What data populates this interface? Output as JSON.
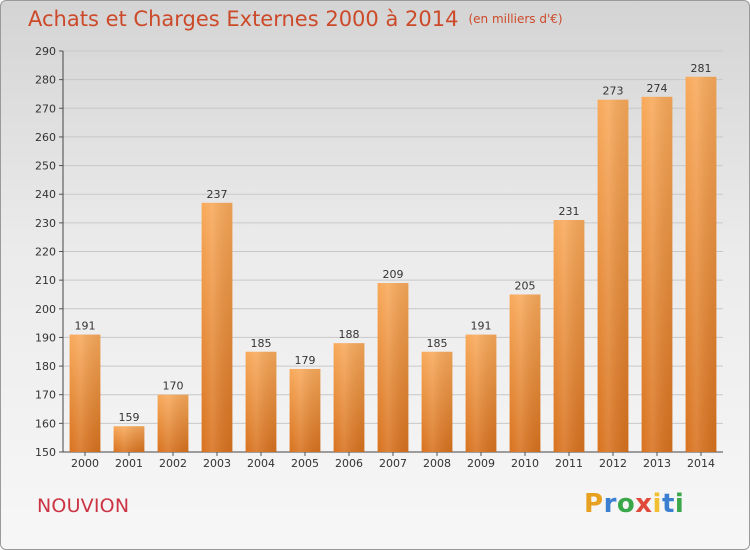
{
  "title": "Achats et Charges Externes 2000 à 2014",
  "subtitle": "(en milliers d'€)",
  "commune": "NOUVION",
  "logo": {
    "letters": [
      "P",
      "r",
      "o",
      "x",
      "i",
      "t",
      "i"
    ],
    "colors": [
      "#e8a020",
      "#3b7fd0",
      "#3aa84a",
      "#e04a3a",
      "#f0c030",
      "#3b7fd0",
      "#3aa84a"
    ]
  },
  "colors": {
    "bar_top": "#f8a95a",
    "bar_bottom": "#d8721e",
    "title": "#cc4a2a",
    "commune": "#cc3344"
  },
  "chart_data": {
    "type": "bar",
    "title": "Achats et Charges Externes 2000 à 2014",
    "subtitle": "(en milliers d'€)",
    "categories": [
      "2000",
      "2001",
      "2002",
      "2003",
      "2004",
      "2005",
      "2006",
      "2007",
      "2008",
      "2009",
      "2010",
      "2011",
      "2012",
      "2013",
      "2014"
    ],
    "values": [
      191,
      159,
      170,
      237,
      185,
      179,
      188,
      209,
      185,
      191,
      205,
      231,
      273,
      274,
      281
    ],
    "ylim": [
      150,
      290
    ],
    "yticks": [
      150,
      160,
      170,
      180,
      190,
      200,
      210,
      220,
      230,
      240,
      250,
      260,
      270,
      280,
      290
    ],
    "grid": true
  }
}
